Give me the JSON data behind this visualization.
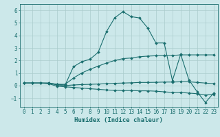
{
  "xlabel": "Humidex (Indice chaleur)",
  "background_color": "#cce8ea",
  "grid_color": "#aacccc",
  "line_color": "#1a6e6e",
  "xlim": [
    -0.5,
    23.5
  ],
  "ylim": [
    -1.7,
    6.5
  ],
  "xticks": [
    0,
    1,
    2,
    3,
    4,
    5,
    6,
    7,
    8,
    9,
    10,
    11,
    12,
    13,
    14,
    15,
    16,
    17,
    18,
    19,
    20,
    21,
    22,
    23
  ],
  "yticks": [
    -1,
    0,
    1,
    2,
    3,
    4,
    5,
    6
  ],
  "lines": [
    {
      "x": [
        0,
        1,
        2,
        3,
        4,
        5,
        6,
        7,
        8,
        9,
        10,
        11,
        12,
        13,
        14,
        15,
        16,
        17,
        18,
        19,
        20,
        21,
        22,
        23
      ],
      "y": [
        0.2,
        0.2,
        0.2,
        0.2,
        0.1,
        0.05,
        1.5,
        1.9,
        2.1,
        2.65,
        4.3,
        5.4,
        5.9,
        5.5,
        5.4,
        4.6,
        3.4,
        3.4,
        0.4,
        2.5,
        0.45,
        -0.5,
        -1.35,
        -0.6
      ]
    },
    {
      "x": [
        0,
        1,
        2,
        3,
        4,
        5,
        6,
        7,
        8,
        9,
        10,
        11,
        12,
        13,
        14,
        15,
        16,
        17,
        18,
        19,
        20,
        21,
        22,
        23
      ],
      "y": [
        0.2,
        0.2,
        0.2,
        0.2,
        0.1,
        0.1,
        0.6,
        1.0,
        1.3,
        1.55,
        1.8,
        2.0,
        2.15,
        2.2,
        2.3,
        2.35,
        2.38,
        2.4,
        2.4,
        2.45,
        2.45,
        2.45,
        2.45,
        2.45
      ]
    },
    {
      "x": [
        0,
        1,
        2,
        3,
        4,
        5,
        6,
        7,
        8,
        9,
        10,
        11,
        12,
        13,
        14,
        15,
        16,
        17,
        18,
        19,
        20,
        21,
        22,
        23
      ],
      "y": [
        0.2,
        0.2,
        0.2,
        0.15,
        -0.05,
        -0.1,
        -0.15,
        -0.2,
        -0.25,
        -0.3,
        -0.35,
        -0.38,
        -0.4,
        -0.4,
        -0.42,
        -0.42,
        -0.45,
        -0.5,
        -0.55,
        -0.55,
        -0.6,
        -0.65,
        -0.75,
        -0.7
      ]
    },
    {
      "x": [
        0,
        1,
        2,
        3,
        4,
        5,
        6,
        7,
        8,
        9,
        10,
        11,
        12,
        13,
        14,
        15,
        16,
        17,
        18,
        19,
        20,
        21,
        22,
        23
      ],
      "y": [
        0.2,
        0.2,
        0.2,
        0.18,
        0.05,
        0.0,
        0.05,
        0.08,
        0.1,
        0.12,
        0.15,
        0.18,
        0.2,
        0.22,
        0.25,
        0.25,
        0.26,
        0.28,
        0.28,
        0.3,
        0.3,
        0.25,
        0.2,
        0.15
      ]
    }
  ]
}
